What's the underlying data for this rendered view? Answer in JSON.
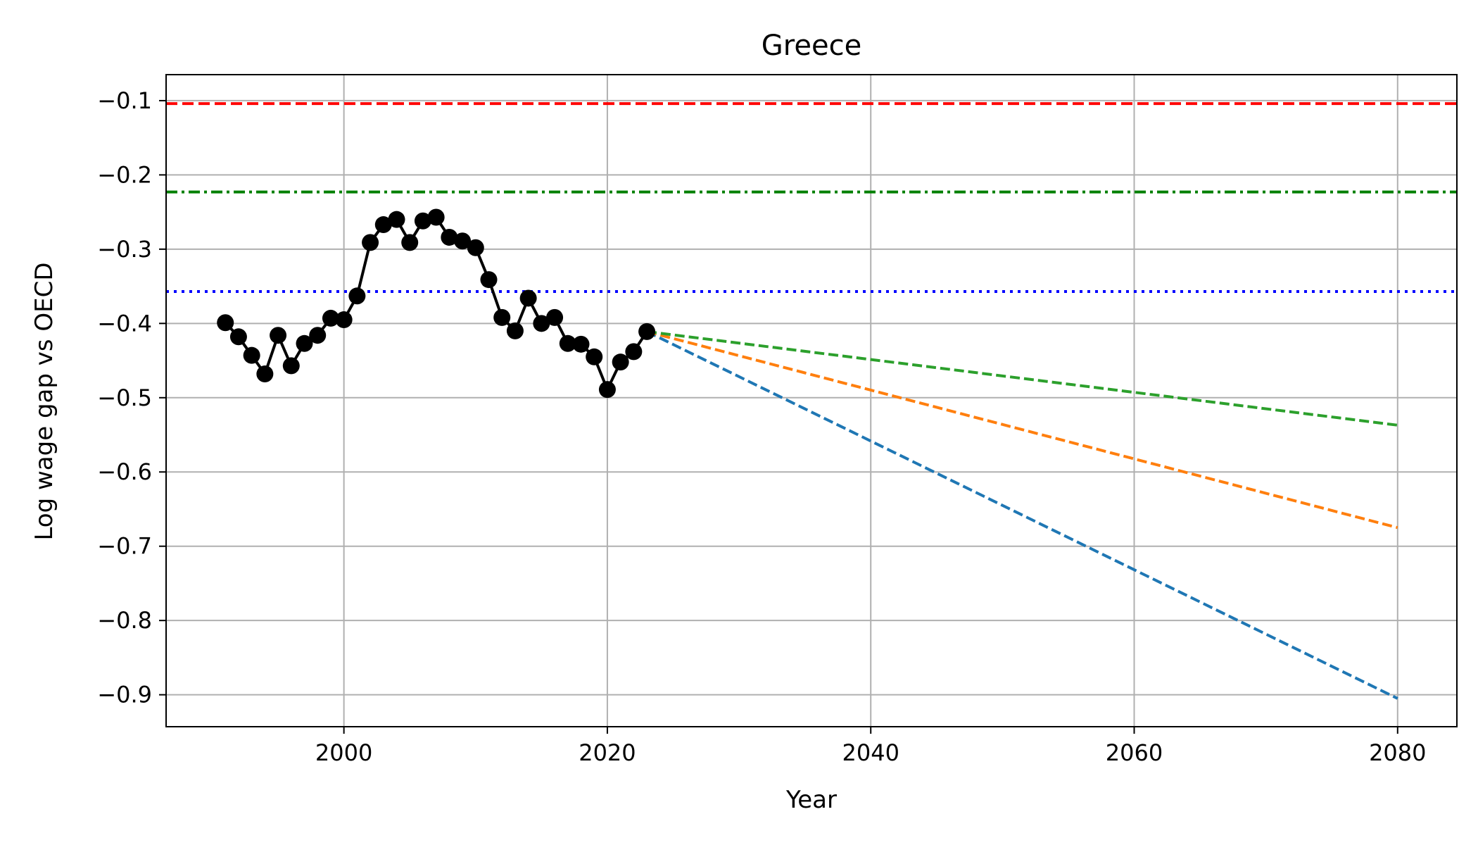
{
  "chart_data": {
    "type": "line",
    "title": "Greece",
    "xlabel": "Year",
    "ylabel": "Log wage gap vs OECD",
    "xlim": [
      1986.5,
      2084.5
    ],
    "ylim": [
      -0.943,
      -0.065
    ],
    "xticks": [
      2000,
      2020,
      2040,
      2060,
      2080
    ],
    "yticks": [
      -0.1,
      -0.2,
      -0.3,
      -0.4,
      -0.5,
      -0.6,
      -0.7,
      -0.8,
      -0.9
    ],
    "grid": true,
    "historical": {
      "color": "#000000",
      "x": [
        1991,
        1992,
        1993,
        1994,
        1995,
        1996,
        1997,
        1998,
        1999,
        2000,
        2001,
        2002,
        2003,
        2004,
        2005,
        2006,
        2007,
        2008,
        2009,
        2010,
        2011,
        2012,
        2013,
        2014,
        2015,
        2016,
        2017,
        2018,
        2019,
        2020,
        2021,
        2022,
        2023
      ],
      "y": [
        -0.399,
        -0.418,
        -0.443,
        -0.468,
        -0.416,
        -0.457,
        -0.427,
        -0.416,
        -0.393,
        -0.395,
        -0.363,
        -0.291,
        -0.267,
        -0.26,
        -0.291,
        -0.262,
        -0.257,
        -0.284,
        -0.289,
        -0.298,
        -0.341,
        -0.392,
        -0.41,
        -0.366,
        -0.4,
        -0.392,
        -0.427,
        -0.428,
        -0.445,
        -0.489,
        -0.452,
        -0.438,
        -0.411
      ]
    },
    "projections": [
      {
        "color": "#1f77b4",
        "x": [
          2023,
          2080
        ],
        "y": [
          -0.411,
          -0.905
        ]
      },
      {
        "color": "#ff7f0e",
        "x": [
          2023,
          2080
        ],
        "y": [
          -0.411,
          -0.675
        ]
      },
      {
        "color": "#2ca02c",
        "x": [
          2023,
          2080
        ],
        "y": [
          -0.411,
          -0.537
        ]
      }
    ],
    "reference_lines": [
      {
        "y": -0.104,
        "color": "#ff0000",
        "style": "dashed"
      },
      {
        "y": -0.223,
        "color": "#008000",
        "style": "dashdot"
      },
      {
        "y": -0.357,
        "color": "#0000ff",
        "style": "dotted"
      }
    ]
  }
}
